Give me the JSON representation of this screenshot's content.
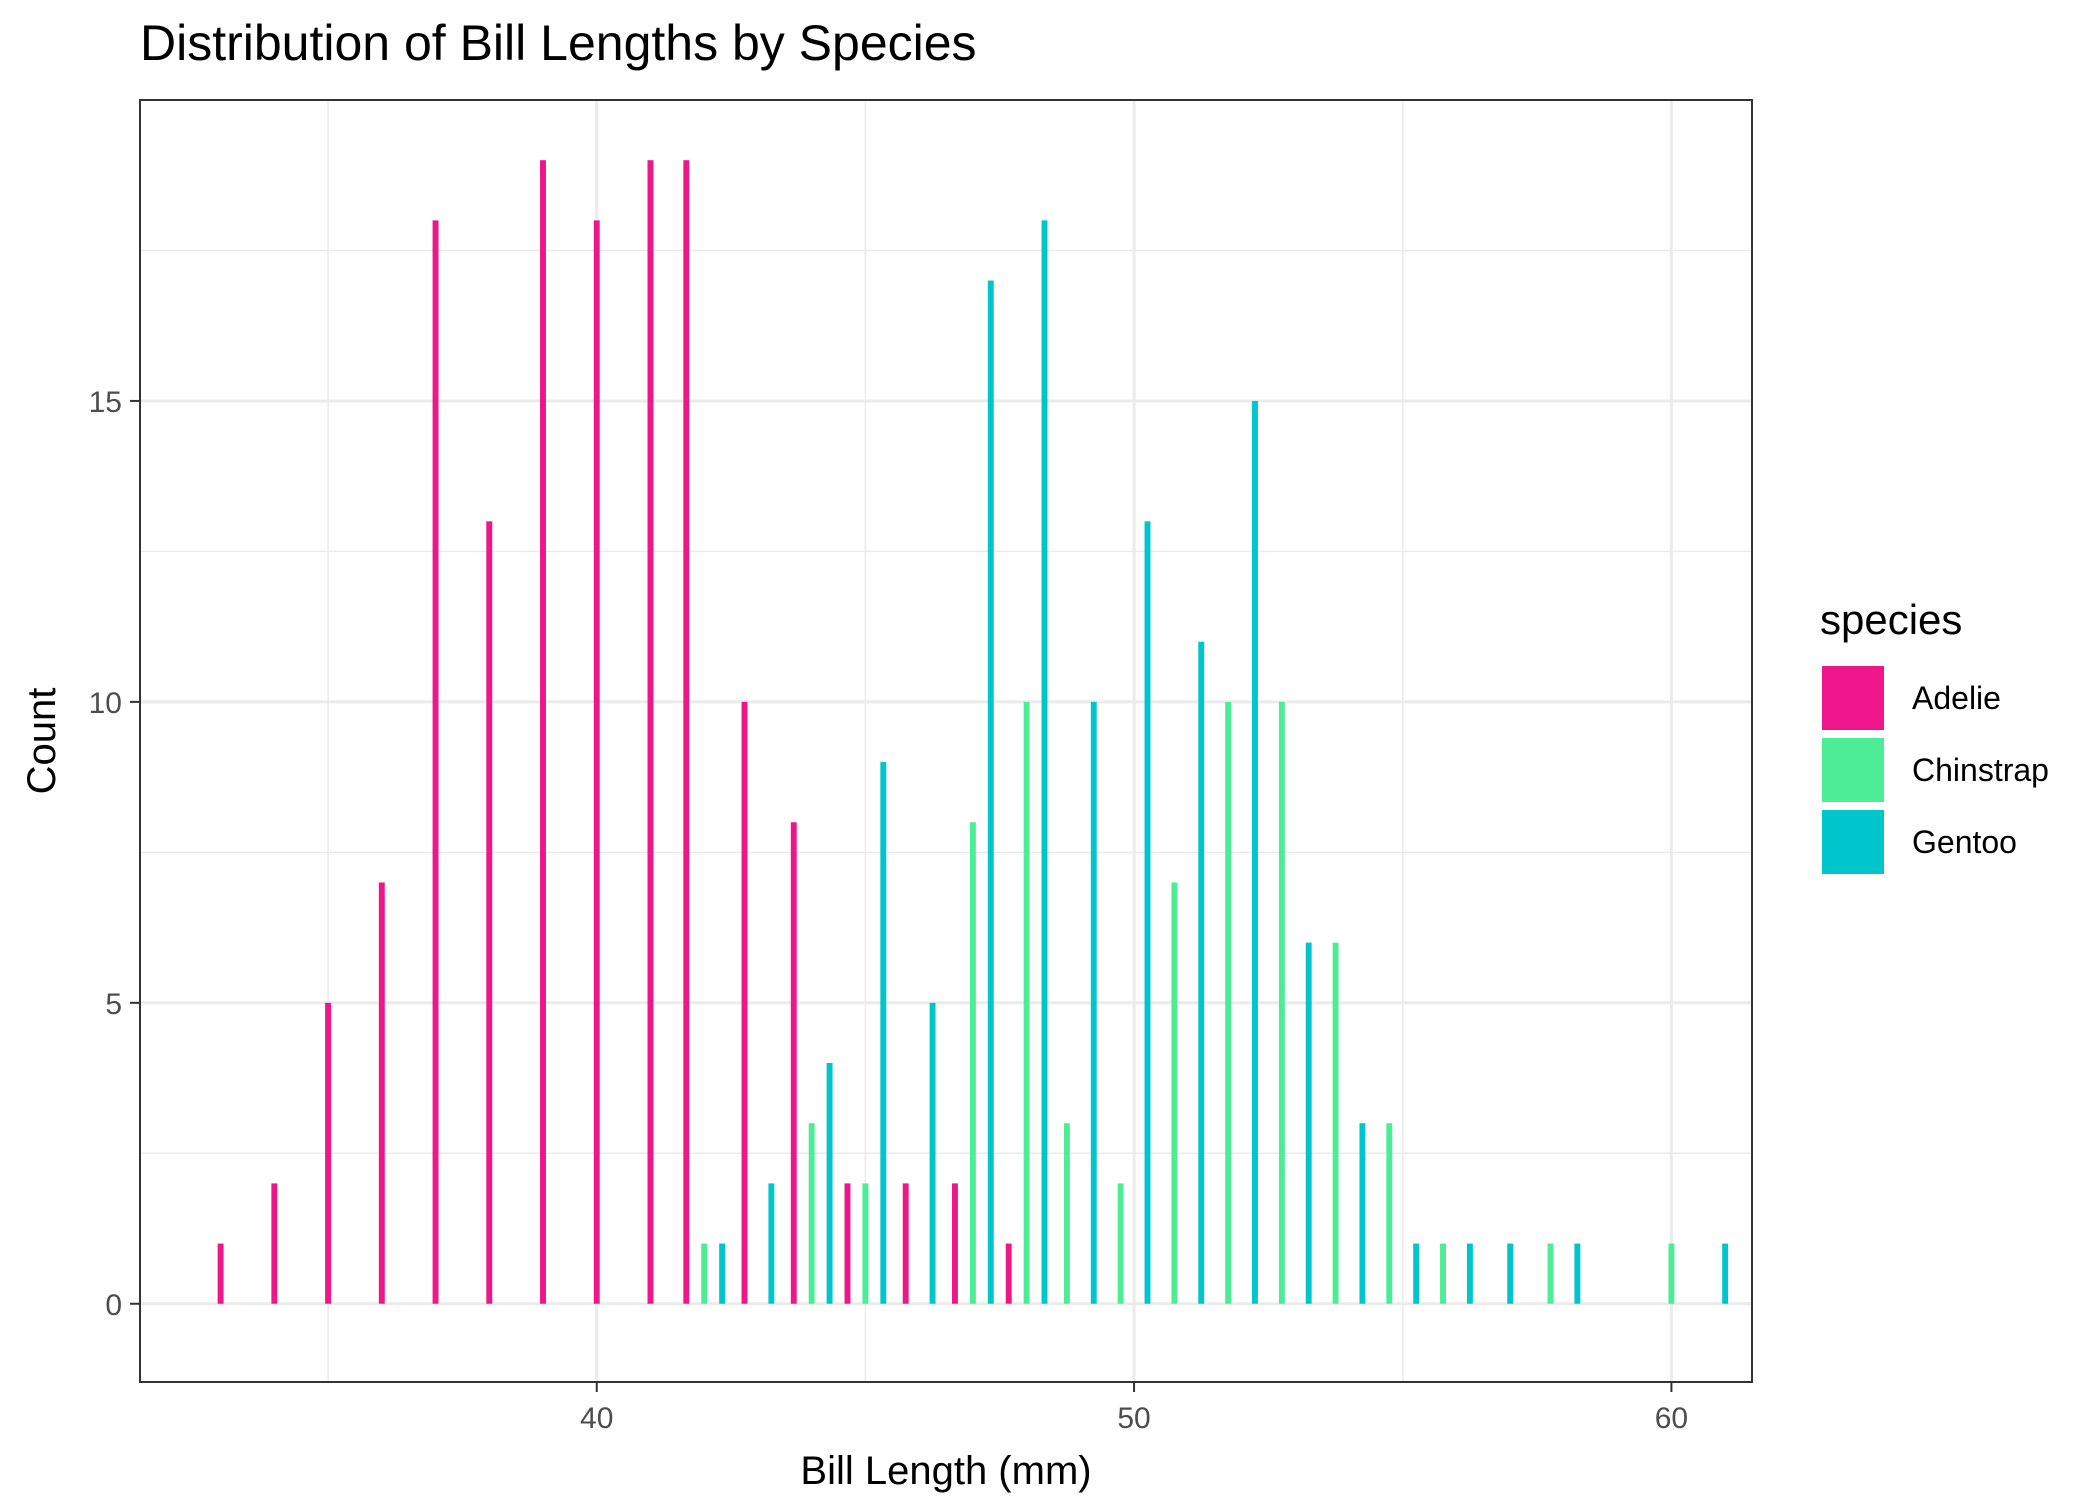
{
  "chart_data": {
    "type": "bar",
    "title": "Distribution of Bill Lengths by Species",
    "xlabel": "Bill Length (mm)",
    "ylabel": "Count",
    "xlim": [
      31.5,
      61.5
    ],
    "ylim": [
      -1.3,
      20
    ],
    "x_ticks": [
      40,
      50,
      60
    ],
    "y_ticks": [
      0,
      5,
      10,
      15
    ],
    "grid": true,
    "legend": {
      "title": "species",
      "position": "right"
    },
    "bin_centers": [
      33,
      34,
      35,
      36,
      37,
      38,
      39,
      40,
      41,
      42,
      43,
      44,
      45,
      46,
      47,
      48,
      49,
      50,
      51,
      52,
      53,
      54,
      55,
      56,
      57,
      58,
      59,
      60,
      61
    ],
    "series": [
      {
        "name": "Adelie",
        "color": "#ee168a",
        "values": [
          1,
          2,
          5,
          7,
          18,
          13,
          19,
          18,
          19,
          19,
          10,
          8,
          2,
          2,
          2,
          1,
          0,
          0,
          0,
          0,
          0,
          0,
          0,
          0,
          0,
          0,
          0,
          0,
          0
        ]
      },
      {
        "name": "Chinstrap",
        "color": "#4ded96",
        "values": [
          0,
          0,
          0,
          0,
          0,
          0,
          0,
          0,
          0,
          1,
          0,
          3,
          2,
          0,
          8,
          10,
          3,
          2,
          7,
          10,
          10,
          6,
          3,
          1,
          0,
          1,
          0,
          1,
          0
        ]
      },
      {
        "name": "Gentoo",
        "color": "#00c5cd",
        "values": [
          0,
          0,
          0,
          0,
          0,
          0,
          0,
          0,
          0,
          1,
          2,
          4,
          9,
          5,
          17,
          18,
          10,
          13,
          11,
          15,
          6,
          3,
          1,
          1,
          1,
          1,
          0,
          0,
          1
        ]
      }
    ]
  }
}
